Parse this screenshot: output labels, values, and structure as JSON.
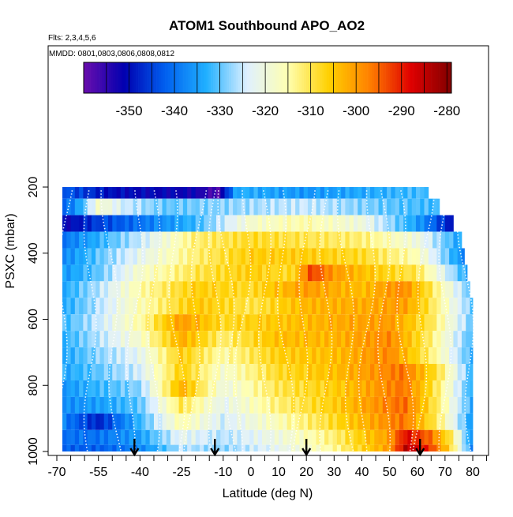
{
  "chart_data": {
    "type": "heatmap",
    "title": "ATOM1 Southbound APO_AO2",
    "subtitle_flights": "Flts: 2,3,4,5,6",
    "subtitle_dates": "MMDD: 0801,0803,0806,0808,0812",
    "xlabel": "Latitude (deg N)",
    "ylabel": "PSXC (mbar)",
    "xlim": [
      -70,
      85
    ],
    "ylim": [
      1000,
      100
    ],
    "x_ticks": [
      -70,
      -55,
      -40,
      -25,
      -10,
      0,
      10,
      20,
      30,
      40,
      50,
      60,
      70,
      80
    ],
    "x_minor_ticks": [
      -65,
      -60,
      -50,
      -45,
      -35,
      -30,
      -20,
      -15,
      -5,
      5,
      15,
      25,
      35,
      45,
      55,
      65,
      75,
      85
    ],
    "y_ticks": [
      200,
      400,
      600,
      800,
      1000
    ],
    "colorbar": {
      "min": -360,
      "max": -279,
      "ticks": [
        -350,
        -340,
        -330,
        -320,
        -310,
        -300,
        -290,
        -280
      ],
      "stops": [
        "#6a0dad",
        "#0000b0",
        "#0060f0",
        "#20b0ff",
        "#dff0ff",
        "#ffffb0",
        "#ffd000",
        "#ff8000",
        "#e00000",
        "#800000"
      ]
    },
    "layers": [
      {
        "p": 210,
        "start": -68,
        "end": 64,
        "knots": [
          [
            -68,
            -342
          ],
          [
            -50,
            -350
          ],
          [
            -20,
            -352
          ],
          [
            -12,
            -358
          ],
          [
            -5,
            -333
          ],
          [
            20,
            -336
          ],
          [
            64,
            -331
          ]
        ]
      },
      {
        "p": 260,
        "start": -68,
        "end": 68,
        "knots": [
          [
            -68,
            -342
          ],
          [
            -62,
            -335
          ],
          [
            -55,
            -318
          ],
          [
            -45,
            -325
          ],
          [
            -30,
            -330
          ],
          [
            -10,
            -328
          ],
          [
            20,
            -325
          ],
          [
            50,
            -330
          ],
          [
            68,
            -332
          ]
        ]
      },
      {
        "p": 310,
        "start": -68,
        "end": 73,
        "knots": [
          [
            -68,
            -352
          ],
          [
            -55,
            -345
          ],
          [
            -40,
            -340
          ],
          [
            -20,
            -332
          ],
          [
            0,
            -318
          ],
          [
            20,
            -315
          ],
          [
            40,
            -320
          ],
          [
            60,
            -335
          ],
          [
            73,
            -350
          ]
        ]
      },
      {
        "p": 360,
        "start": -68,
        "end": 76,
        "knots": [
          [
            -68,
            -340
          ],
          [
            -55,
            -333
          ],
          [
            -40,
            -325
          ],
          [
            -20,
            -312
          ],
          [
            0,
            -308
          ],
          [
            20,
            -310
          ],
          [
            40,
            -312
          ],
          [
            60,
            -320
          ],
          [
            76,
            -335
          ]
        ]
      },
      {
        "p": 410,
        "start": -68,
        "end": 77,
        "knots": [
          [
            -68,
            -338
          ],
          [
            -55,
            -330
          ],
          [
            -40,
            -322
          ],
          [
            -20,
            -312
          ],
          [
            0,
            -306
          ],
          [
            20,
            -306
          ],
          [
            40,
            -308
          ],
          [
            60,
            -316
          ],
          [
            77,
            -338
          ]
        ]
      },
      {
        "p": 460,
        "start": -68,
        "end": 78,
        "knots": [
          [
            -68,
            -336
          ],
          [
            -55,
            -330
          ],
          [
            -40,
            -318
          ],
          [
            -20,
            -310
          ],
          [
            0,
            -306
          ],
          [
            15,
            -308
          ],
          [
            22,
            -292
          ],
          [
            30,
            -300
          ],
          [
            45,
            -306
          ],
          [
            60,
            -310
          ],
          [
            78,
            -334
          ]
        ]
      },
      {
        "p": 510,
        "start": -68,
        "end": 79,
        "knots": [
          [
            -68,
            -334
          ],
          [
            -55,
            -326
          ],
          [
            -40,
            -315
          ],
          [
            -20,
            -306
          ],
          [
            0,
            -308
          ],
          [
            20,
            -300
          ],
          [
            40,
            -304
          ],
          [
            55,
            -298
          ],
          [
            65,
            -310
          ],
          [
            79,
            -330
          ]
        ]
      },
      {
        "p": 560,
        "start": -68,
        "end": 80,
        "knots": [
          [
            -68,
            -334
          ],
          [
            -55,
            -326
          ],
          [
            -40,
            -316
          ],
          [
            -20,
            -305
          ],
          [
            0,
            -310
          ],
          [
            20,
            -303
          ],
          [
            40,
            -302
          ],
          [
            55,
            -300
          ],
          [
            65,
            -310
          ],
          [
            80,
            -330
          ]
        ]
      },
      {
        "p": 610,
        "start": -68,
        "end": 80,
        "knots": [
          [
            -68,
            -332
          ],
          [
            -55,
            -325
          ],
          [
            -40,
            -315
          ],
          [
            -25,
            -300
          ],
          [
            -10,
            -308
          ],
          [
            10,
            -305
          ],
          [
            30,
            -302
          ],
          [
            50,
            -300
          ],
          [
            65,
            -310
          ],
          [
            80,
            -330
          ]
        ]
      },
      {
        "p": 660,
        "start": -68,
        "end": 80,
        "knots": [
          [
            -68,
            -333
          ],
          [
            -55,
            -326
          ],
          [
            -40,
            -318
          ],
          [
            -25,
            -302
          ],
          [
            -10,
            -312
          ],
          [
            10,
            -304
          ],
          [
            30,
            -303
          ],
          [
            50,
            -298
          ],
          [
            65,
            -312
          ],
          [
            80,
            -332
          ]
        ]
      },
      {
        "p": 710,
        "start": -68,
        "end": 80,
        "knots": [
          [
            -68,
            -334
          ],
          [
            -55,
            -328
          ],
          [
            -40,
            -322
          ],
          [
            -25,
            -306
          ],
          [
            -10,
            -315
          ],
          [
            10,
            -306
          ],
          [
            30,
            -304
          ],
          [
            50,
            -298
          ],
          [
            65,
            -312
          ],
          [
            80,
            -333
          ]
        ]
      },
      {
        "p": 760,
        "start": -68,
        "end": 80,
        "knots": [
          [
            -68,
            -334
          ],
          [
            -55,
            -330
          ],
          [
            -40,
            -324
          ],
          [
            -25,
            -306
          ],
          [
            -10,
            -318
          ],
          [
            10,
            -308
          ],
          [
            30,
            -304
          ],
          [
            55,
            -296
          ],
          [
            68,
            -310
          ],
          [
            80,
            -333
          ]
        ]
      },
      {
        "p": 810,
        "start": -68,
        "end": 80,
        "knots": [
          [
            -68,
            -336
          ],
          [
            -55,
            -332
          ],
          [
            -40,
            -328
          ],
          [
            -25,
            -302
          ],
          [
            -10,
            -320
          ],
          [
            10,
            -310
          ],
          [
            30,
            -306
          ],
          [
            55,
            -296
          ],
          [
            68,
            -312
          ],
          [
            80,
            -334
          ]
        ]
      },
      {
        "p": 860,
        "start": -68,
        "end": 80,
        "knots": [
          [
            -68,
            -337
          ],
          [
            -55,
            -335
          ],
          [
            -40,
            -330
          ],
          [
            -25,
            -310
          ],
          [
            -10,
            -322
          ],
          [
            10,
            -312
          ],
          [
            30,
            -306
          ],
          [
            55,
            -295
          ],
          [
            68,
            -312
          ],
          [
            80,
            -334
          ]
        ]
      },
      {
        "p": 910,
        "start": -68,
        "end": 80,
        "knots": [
          [
            -68,
            -338
          ],
          [
            -55,
            -348
          ],
          [
            -40,
            -332
          ],
          [
            -25,
            -315
          ],
          [
            -10,
            -324
          ],
          [
            10,
            -316
          ],
          [
            30,
            -308
          ],
          [
            55,
            -296
          ],
          [
            68,
            -312
          ],
          [
            80,
            -336
          ]
        ]
      },
      {
        "p": 960,
        "start": -68,
        "end": 80,
        "knots": [
          [
            -68,
            -340
          ],
          [
            -55,
            -340
          ],
          [
            -40,
            -335
          ],
          [
            -25,
            -322
          ],
          [
            -10,
            -326
          ],
          [
            10,
            -320
          ],
          [
            30,
            -312
          ],
          [
            50,
            -300
          ],
          [
            56,
            -288
          ],
          [
            65,
            -296
          ],
          [
            72,
            -310
          ],
          [
            80,
            -338
          ]
        ]
      },
      {
        "p": 1000,
        "start": -68,
        "end": 80,
        "knots": [
          [
            -68,
            -342
          ],
          [
            -55,
            -342
          ],
          [
            -40,
            -338
          ],
          [
            -25,
            -326
          ],
          [
            -10,
            -328
          ],
          [
            10,
            -322
          ],
          [
            30,
            -314
          ],
          [
            50,
            -300
          ],
          [
            56,
            -284
          ],
          [
            65,
            -292
          ],
          [
            72,
            -308
          ],
          [
            80,
            -338
          ]
        ]
      }
    ],
    "profile_latitudes": [
      -68,
      -58,
      -50,
      -42,
      -35,
      -27,
      -20,
      -13,
      -8,
      -3,
      5,
      12,
      19,
      27,
      35,
      42,
      48,
      55,
      62,
      70,
      78
    ],
    "arrow_latitudes": [
      -42,
      -13,
      20,
      61
    ]
  }
}
